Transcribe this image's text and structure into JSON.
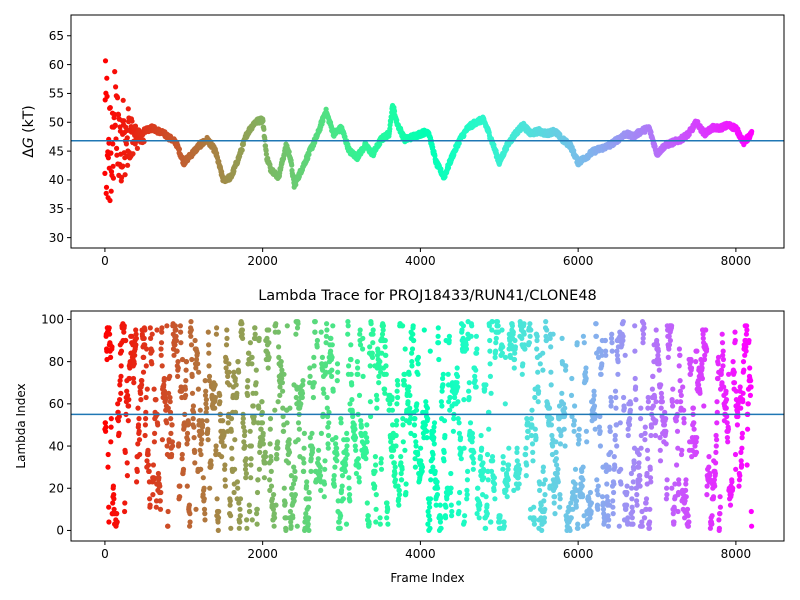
{
  "chart_data": [
    {
      "type": "scatter",
      "title": "",
      "xlabel": "",
      "ylabel": "ΔG (kT)",
      "ylabel_parts": {
        "delta": "Δ",
        "var": "G",
        "unit": " (kT)"
      },
      "xlim": [
        -430,
        8610
      ],
      "ylim": [
        28.2,
        68.6
      ],
      "x_ticks": [
        0,
        2000,
        4000,
        6000,
        8000
      ],
      "y_ticks": [
        30,
        35,
        40,
        45,
        50,
        55,
        60,
        65
      ],
      "reference_line": {
        "y": 46.8,
        "color": "#1f77b4"
      },
      "colormap": "rainbow (red at frame 0 to violet at frame 8200)",
      "frames": 8200,
      "trace_keypoints": [
        [
          0,
          47
        ],
        [
          150,
          48
        ],
        [
          300,
          47.5
        ],
        [
          450,
          48.5
        ],
        [
          600,
          49
        ],
        [
          750,
          48
        ],
        [
          900,
          46.5
        ],
        [
          1000,
          43
        ],
        [
          1100,
          44.5
        ],
        [
          1200,
          46
        ],
        [
          1300,
          47
        ],
        [
          1400,
          45
        ],
        [
          1500,
          40
        ],
        [
          1600,
          40.5
        ],
        [
          1700,
          44
        ],
        [
          1800,
          48
        ],
        [
          1900,
          50
        ],
        [
          2000,
          50.5
        ],
        [
          2050,
          44
        ],
        [
          2100,
          42
        ],
        [
          2200,
          40.5
        ],
        [
          2300,
          46
        ],
        [
          2350,
          44
        ],
        [
          2400,
          39
        ],
        [
          2500,
          42
        ],
        [
          2600,
          45
        ],
        [
          2700,
          48
        ],
        [
          2800,
          52
        ],
        [
          2900,
          48
        ],
        [
          3000,
          49
        ],
        [
          3100,
          45
        ],
        [
          3200,
          44
        ],
        [
          3300,
          46
        ],
        [
          3400,
          44.5
        ],
        [
          3500,
          47
        ],
        [
          3600,
          48
        ],
        [
          3650,
          53
        ],
        [
          3700,
          50
        ],
        [
          3800,
          47
        ],
        [
          3900,
          47.5
        ],
        [
          4000,
          48
        ],
        [
          4100,
          48.5
        ],
        [
          4200,
          43
        ],
        [
          4300,
          40.5
        ],
        [
          4400,
          44
        ],
        [
          4500,
          47
        ],
        [
          4600,
          49
        ],
        [
          4700,
          50
        ],
        [
          4800,
          50.5
        ],
        [
          4900,
          47
        ],
        [
          5000,
          43
        ],
        [
          5100,
          46
        ],
        [
          5200,
          48
        ],
        [
          5300,
          49.5
        ],
        [
          5400,
          48
        ],
        [
          5500,
          48.5
        ],
        [
          5600,
          48
        ],
        [
          5700,
          48.5
        ],
        [
          5800,
          47
        ],
        [
          5900,
          46
        ],
        [
          6000,
          43
        ],
        [
          6100,
          44
        ],
        [
          6200,
          45
        ],
        [
          6300,
          45.5
        ],
        [
          6400,
          46
        ],
        [
          6500,
          47
        ],
        [
          6600,
          48
        ],
        [
          6700,
          47.5
        ],
        [
          6800,
          48.5
        ],
        [
          6900,
          49
        ],
        [
          7000,
          44.5
        ],
        [
          7100,
          46
        ],
        [
          7200,
          46.5
        ],
        [
          7300,
          47
        ],
        [
          7400,
          48
        ],
        [
          7500,
          50
        ],
        [
          7600,
          48
        ],
        [
          7700,
          49
        ],
        [
          7800,
          49
        ],
        [
          7900,
          49.5
        ],
        [
          8000,
          49
        ],
        [
          8100,
          46.5
        ],
        [
          8200,
          48
        ]
      ],
      "early_spread": {
        "frames": [
          0,
          500
        ],
        "range": [
          31,
          66
        ]
      }
    },
    {
      "type": "scatter",
      "title": "Lambda Trace for PROJ18433/RUN41/CLONE48",
      "xlabel": "Frame Index",
      "ylabel": "Lambda Index",
      "xlim": [
        -430,
        8610
      ],
      "ylim": [
        -5,
        104
      ],
      "x_ticks": [
        0,
        2000,
        4000,
        6000,
        8000
      ],
      "y_ticks": [
        0,
        20,
        40,
        60,
        80,
        100
      ],
      "reference_line": {
        "y": 55,
        "color": "#1f77b4"
      },
      "colormap": "rainbow (red at frame 0 to violet at frame 8200)",
      "frames": 8200,
      "lambda_range": [
        0,
        99
      ]
    }
  ],
  "x_tick_text": [
    "0",
    "2000",
    "4000",
    "6000",
    "8000"
  ],
  "top_y_tick_text": [
    "30",
    "35",
    "40",
    "45",
    "50",
    "55",
    "60",
    "65"
  ],
  "bottom_y_tick_text": [
    "0",
    "20",
    "40",
    "60",
    "80",
    "100"
  ]
}
